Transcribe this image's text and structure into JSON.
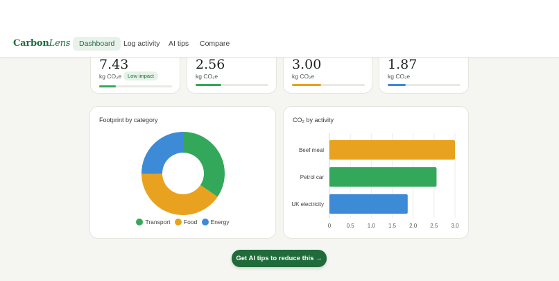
{
  "app": {
    "logo_main": "Carbon",
    "logo_italic": "Lens"
  },
  "nav": [
    {
      "label": "Dashboard",
      "active": true
    },
    {
      "label": "Log activity",
      "active": false
    },
    {
      "label": "AI tips",
      "active": false
    },
    {
      "label": "Compare",
      "active": false
    }
  ],
  "stats": [
    {
      "value": "7.43",
      "unit": "kg CO₂e ·",
      "badge": "Low impact",
      "progress": 0.23,
      "color": "#34a85a"
    },
    {
      "value": "2.56",
      "unit": "kg CO₂e",
      "progress": 0.35,
      "color": "#34a85a"
    },
    {
      "value": "3.00",
      "unit": "kg CO₂e",
      "progress": 0.4,
      "color": "#e8a21f"
    },
    {
      "value": "1.87",
      "unit": "kg CO₂e",
      "progress": 0.25,
      "color": "#3d8bd6"
    }
  ],
  "chart_data": [
    {
      "type": "pie",
      "title": "Footprint by category",
      "categories": [
        "Transport",
        "Food",
        "Energy"
      ],
      "values": [
        2.56,
        3.0,
        1.87
      ],
      "colors": [
        "#34a85a",
        "#e8a21f",
        "#3d8bd6"
      ],
      "donut": true,
      "legend": "bottom"
    },
    {
      "type": "bar",
      "orientation": "horizontal",
      "title": "CO₂ by activity",
      "categories": [
        "Beef meal",
        "Petrol car",
        "UK electricity"
      ],
      "values": [
        3.0,
        2.56,
        1.87
      ],
      "colors": [
        "#e8a21f",
        "#34a85a",
        "#3d8bd6"
      ],
      "xlim": [
        0,
        3.0
      ],
      "xticks": [
        "0",
        "0.5",
        "1.0",
        "1.5",
        "2.0",
        "2.5",
        "3.0"
      ],
      "grid": true
    }
  ],
  "cta": {
    "label": "Get AI tips to reduce this →"
  }
}
